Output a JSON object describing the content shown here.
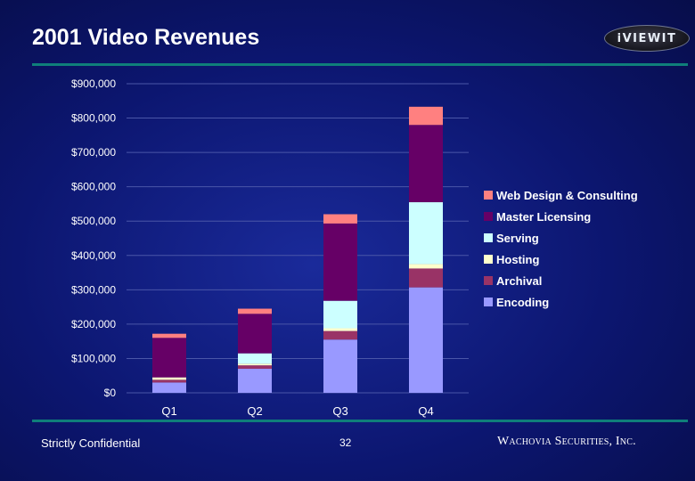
{
  "slide": {
    "title": "2001 Video Revenues",
    "logo_text": "iVIEWIT",
    "footer_left": "Strictly Confidential",
    "page_number": "32",
    "footer_right": "Wachovia Securities, Inc."
  },
  "colors": {
    "background": "#0c1670",
    "rule": "#0f7f7a"
  },
  "chart_data": {
    "type": "bar",
    "stacked": true,
    "categories": [
      "Q1",
      "Q2",
      "Q3",
      "Q4"
    ],
    "ylim": [
      0,
      900000
    ],
    "ytick_values": [
      0,
      100000,
      200000,
      300000,
      400000,
      500000,
      600000,
      700000,
      800000,
      900000
    ],
    "ytick_labels": [
      "$0",
      "$100,000",
      "$200,000",
      "$300,000",
      "$400,000",
      "$500,000",
      "$600,000",
      "$700,000",
      "$800,000",
      "$900,000"
    ],
    "grid": true,
    "legend_position": "right",
    "series": [
      {
        "name": "Encoding",
        "color": "#9999ff",
        "values": [
          30000,
          70000,
          155000,
          307000
        ]
      },
      {
        "name": "Archival",
        "color": "#993366",
        "values": [
          8000,
          10000,
          25000,
          55000
        ]
      },
      {
        "name": "Hosting",
        "color": "#ffffcc",
        "values": [
          7000,
          5000,
          8000,
          13000
        ]
      },
      {
        "name": "Serving",
        "color": "#ccffff",
        "values": [
          0,
          30000,
          80000,
          180000
        ]
      },
      {
        "name": "Master Licensing",
        "color": "#660066",
        "values": [
          115000,
          115000,
          225000,
          225000
        ]
      },
      {
        "name": "Web Design & Consulting",
        "color": "#ff8080",
        "values": [
          12000,
          15000,
          27000,
          53000
        ]
      }
    ],
    "legend_order": [
      "Web Design & Consulting",
      "Master Licensing",
      "Serving",
      "Hosting",
      "Archival",
      "Encoding"
    ]
  }
}
